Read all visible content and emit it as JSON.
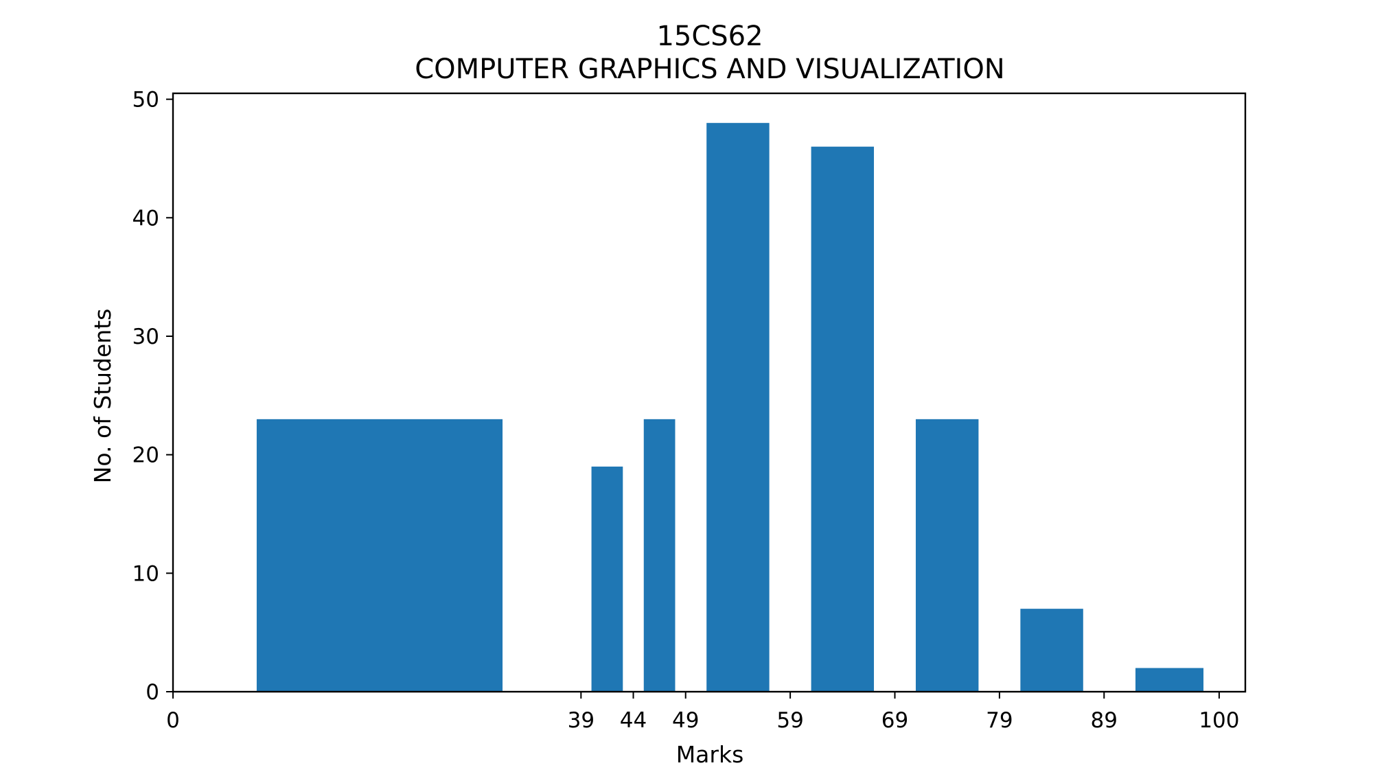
{
  "chart_data": {
    "type": "bar",
    "title_line1": "15CS62",
    "title_line2": "COMPUTER GRAPHICS AND VISUALIZATION",
    "xlabel": "Marks",
    "ylabel": "No. of Students",
    "xlim": [
      0,
      102.5
    ],
    "ylim": [
      0,
      50.5
    ],
    "xticks": [
      0,
      39,
      44,
      49,
      59,
      69,
      79,
      89,
      100
    ],
    "yticks": [
      0,
      10,
      20,
      30,
      40,
      50
    ],
    "bars": [
      {
        "x0": 8,
        "x1": 31.5,
        "value": 23
      },
      {
        "x0": 40,
        "x1": 43,
        "value": 19
      },
      {
        "x0": 45,
        "x1": 48,
        "value": 23
      },
      {
        "x0": 51,
        "x1": 57,
        "value": 48
      },
      {
        "x0": 61,
        "x1": 67,
        "value": 46
      },
      {
        "x0": 71,
        "x1": 77,
        "value": 23
      },
      {
        "x0": 81,
        "x1": 87,
        "value": 7
      },
      {
        "x0": 92,
        "x1": 98.5,
        "value": 2
      }
    ],
    "bar_color": "#1f77b4",
    "grid": false,
    "legend": "none"
  }
}
